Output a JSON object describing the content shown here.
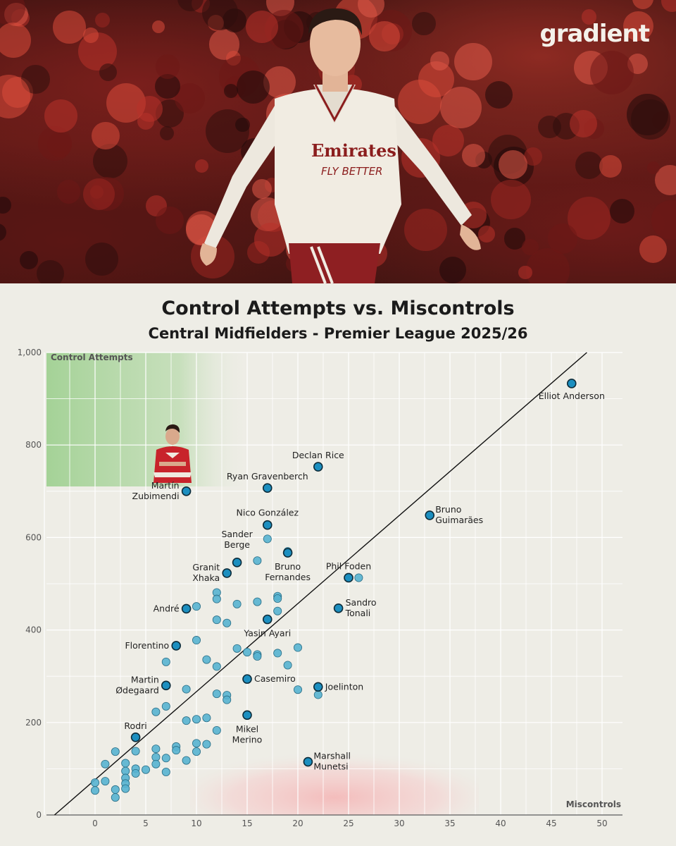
{
  "brand": {
    "logo_text": "gradient"
  },
  "photo": {
    "shirt_sponsor_line1": "Emirates",
    "shirt_sponsor_line2": "FLY BETTER"
  },
  "colors": {
    "background": "#eeede6",
    "point_fill": "#56b2d0",
    "highlight_fill": "#1c8fc0",
    "highlight_zone": "#9ccf8e",
    "danger_zone": "#f4b7b7"
  },
  "chart_data": {
    "type": "scatter",
    "title": "Control Attempts vs. Miscontrols",
    "subtitle": "Central Midfielders - Premier League 2025/26",
    "xlabel": "Miscontrols",
    "ylabel": "Control Attempts",
    "xlim": [
      -5,
      52
    ],
    "ylim": [
      0,
      1000
    ],
    "xticks": [
      0,
      5,
      10,
      15,
      20,
      25,
      30,
      35,
      40,
      45,
      50
    ],
    "yticks": [
      0,
      200,
      400,
      600,
      800,
      "1,000"
    ],
    "grid": true,
    "reference_line": {
      "from": [
        -4,
        0
      ],
      "to": [
        48.5,
        1000
      ]
    },
    "labeled_points": [
      {
        "name": "Elliot Anderson",
        "x": 47,
        "y": 933
      },
      {
        "name": "Declan Rice",
        "x": 22,
        "y": 753
      },
      {
        "name": "Ryan Gravenberch",
        "x": 17,
        "y": 707
      },
      {
        "name": "Martín\nZubimendi",
        "x": 9,
        "y": 700
      },
      {
        "name": "Bruno\nGuimarães",
        "x": 33,
        "y": 648
      },
      {
        "name": "Nico González",
        "x": 17,
        "y": 627
      },
      {
        "name": "Bruno\nFernandes",
        "x": 19,
        "y": 567
      },
      {
        "name": "Sander\nBerge",
        "x": 14,
        "y": 546
      },
      {
        "name": "Granit\nXhaka",
        "x": 13,
        "y": 523
      },
      {
        "name": "Phil Foden",
        "x": 25,
        "y": 513
      },
      {
        "name": "André",
        "x": 9,
        "y": 446
      },
      {
        "name": "Sandro\nTonali",
        "x": 24,
        "y": 447
      },
      {
        "name": "Yasin Ayari",
        "x": 17,
        "y": 423
      },
      {
        "name": "Florentino",
        "x": 8,
        "y": 366
      },
      {
        "name": "Casemiro",
        "x": 15,
        "y": 294
      },
      {
        "name": "Martin\nØdegaard",
        "x": 7,
        "y": 280
      },
      {
        "name": "Joelinton",
        "x": 22,
        "y": 277
      },
      {
        "name": "Mikel\nMerino",
        "x": 15,
        "y": 216
      },
      {
        "name": "Rodri",
        "x": 4,
        "y": 168
      },
      {
        "name": "Marshall\nMunetsi",
        "x": 21,
        "y": 115
      }
    ],
    "other_points": [
      [
        26,
        513
      ],
      [
        19,
        570
      ],
      [
        17,
        597
      ],
      [
        16,
        550
      ],
      [
        18,
        473
      ],
      [
        18,
        468
      ],
      [
        18,
        441
      ],
      [
        16,
        461
      ],
      [
        14,
        456
      ],
      [
        12,
        481
      ],
      [
        12,
        467
      ],
      [
        10,
        451
      ],
      [
        12,
        422
      ],
      [
        13,
        415
      ],
      [
        20,
        362
      ],
      [
        18,
        350
      ],
      [
        16,
        347
      ],
      [
        16,
        343
      ],
      [
        15,
        352
      ],
      [
        14,
        360
      ],
      [
        19,
        324
      ],
      [
        10,
        378
      ],
      [
        11,
        336
      ],
      [
        12,
        321
      ],
      [
        7,
        331
      ],
      [
        9,
        272
      ],
      [
        12,
        262
      ],
      [
        13,
        259
      ],
      [
        13,
        249
      ],
      [
        20,
        271
      ],
      [
        22,
        260
      ],
      [
        7,
        235
      ],
      [
        6,
        223
      ],
      [
        9,
        204
      ],
      [
        10,
        207
      ],
      [
        11,
        210
      ],
      [
        12,
        183
      ],
      [
        10,
        155
      ],
      [
        11,
        153
      ],
      [
        10,
        137
      ],
      [
        8,
        148
      ],
      [
        8,
        140
      ],
      [
        7,
        123
      ],
      [
        6,
        143
      ],
      [
        6,
        125
      ],
      [
        6,
        110
      ],
      [
        5,
        98
      ],
      [
        4,
        100
      ],
      [
        4,
        90
      ],
      [
        9,
        118
      ],
      [
        7,
        93
      ],
      [
        4,
        138
      ],
      [
        3,
        112
      ],
      [
        3,
        95
      ],
      [
        3,
        80
      ],
      [
        3,
        68
      ],
      [
        3,
        57
      ],
      [
        2,
        137
      ],
      [
        2,
        55
      ],
      [
        2,
        38
      ],
      [
        1,
        110
      ],
      [
        1,
        73
      ],
      [
        0,
        70
      ],
      [
        0,
        53
      ]
    ]
  }
}
